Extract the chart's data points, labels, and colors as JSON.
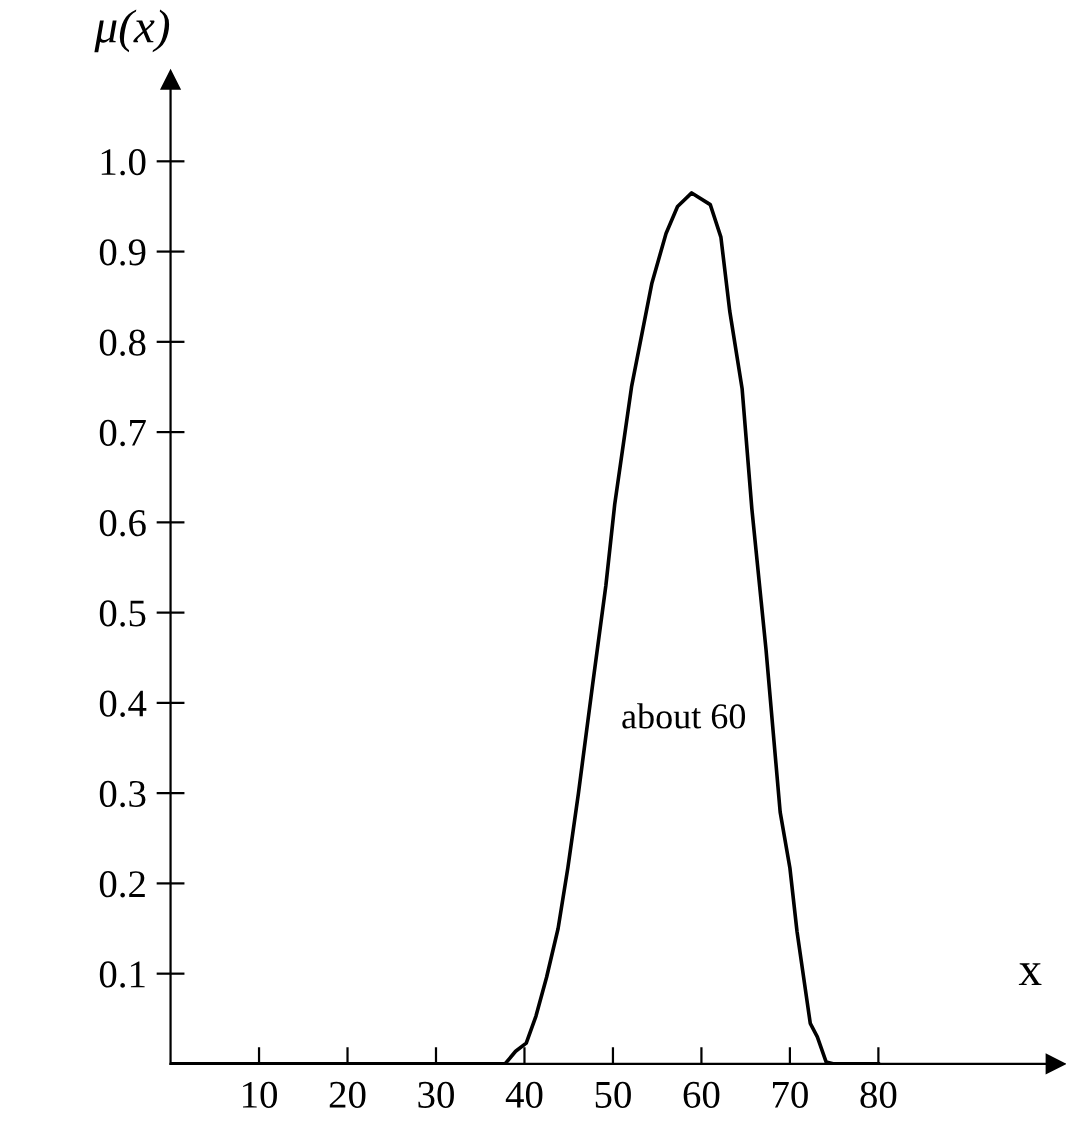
{
  "chart_data": {
    "type": "line",
    "ylabel": "μ(x)",
    "xlabel": "x",
    "annotations": [
      "about 60"
    ],
    "x": [
      0,
      37.8,
      39,
      40.2,
      41.3,
      42.5,
      43.8,
      44.9,
      46.1,
      47.7,
      49.2,
      50.2,
      52.1,
      54.4,
      56.0,
      57.3,
      58.9,
      61.0,
      62.2,
      63.2,
      64.6,
      65.7,
      67.3,
      68.9,
      70.0,
      70.8,
      72.3,
      73.1,
      74.1,
      75,
      80
    ],
    "series": [
      {
        "color": "#000000",
        "values": [
          0,
          0,
          0.014,
          0.023,
          0.053,
          0.096,
          0.15,
          0.217,
          0.3,
          0.42,
          0.53,
          0.62,
          0.75,
          0.865,
          0.92,
          0.95,
          0.965,
          0.952,
          0.916,
          0.834,
          0.748,
          0.615,
          0.459,
          0.279,
          0.217,
          0.147,
          0.045,
          0.03,
          0.002,
          0,
          0
        ]
      }
    ],
    "xlim": [
      0,
      100
    ],
    "ylim": [
      0,
      1.09
    ],
    "xticks": [
      10,
      20,
      30,
      40,
      50,
      60,
      70,
      80
    ],
    "yticks": [
      {
        "value": 0.1,
        "label": "0.1"
      },
      {
        "value": 0.2,
        "label": "0.2"
      },
      {
        "value": 0.3,
        "label": "0.3"
      },
      {
        "value": 0.4,
        "label": "0.4"
      },
      {
        "value": 0.5,
        "label": "0.5"
      },
      {
        "value": 0.6,
        "label": "0.6"
      },
      {
        "value": 0.7,
        "label": "0.7"
      },
      {
        "value": 0.8,
        "label": "0.8"
      },
      {
        "value": 0.9,
        "label": "0.9"
      },
      {
        "value": 1.0,
        "label": "1.0"
      }
    ],
    "grid": false,
    "legend": false,
    "marker": "none",
    "line_style": "solid"
  }
}
